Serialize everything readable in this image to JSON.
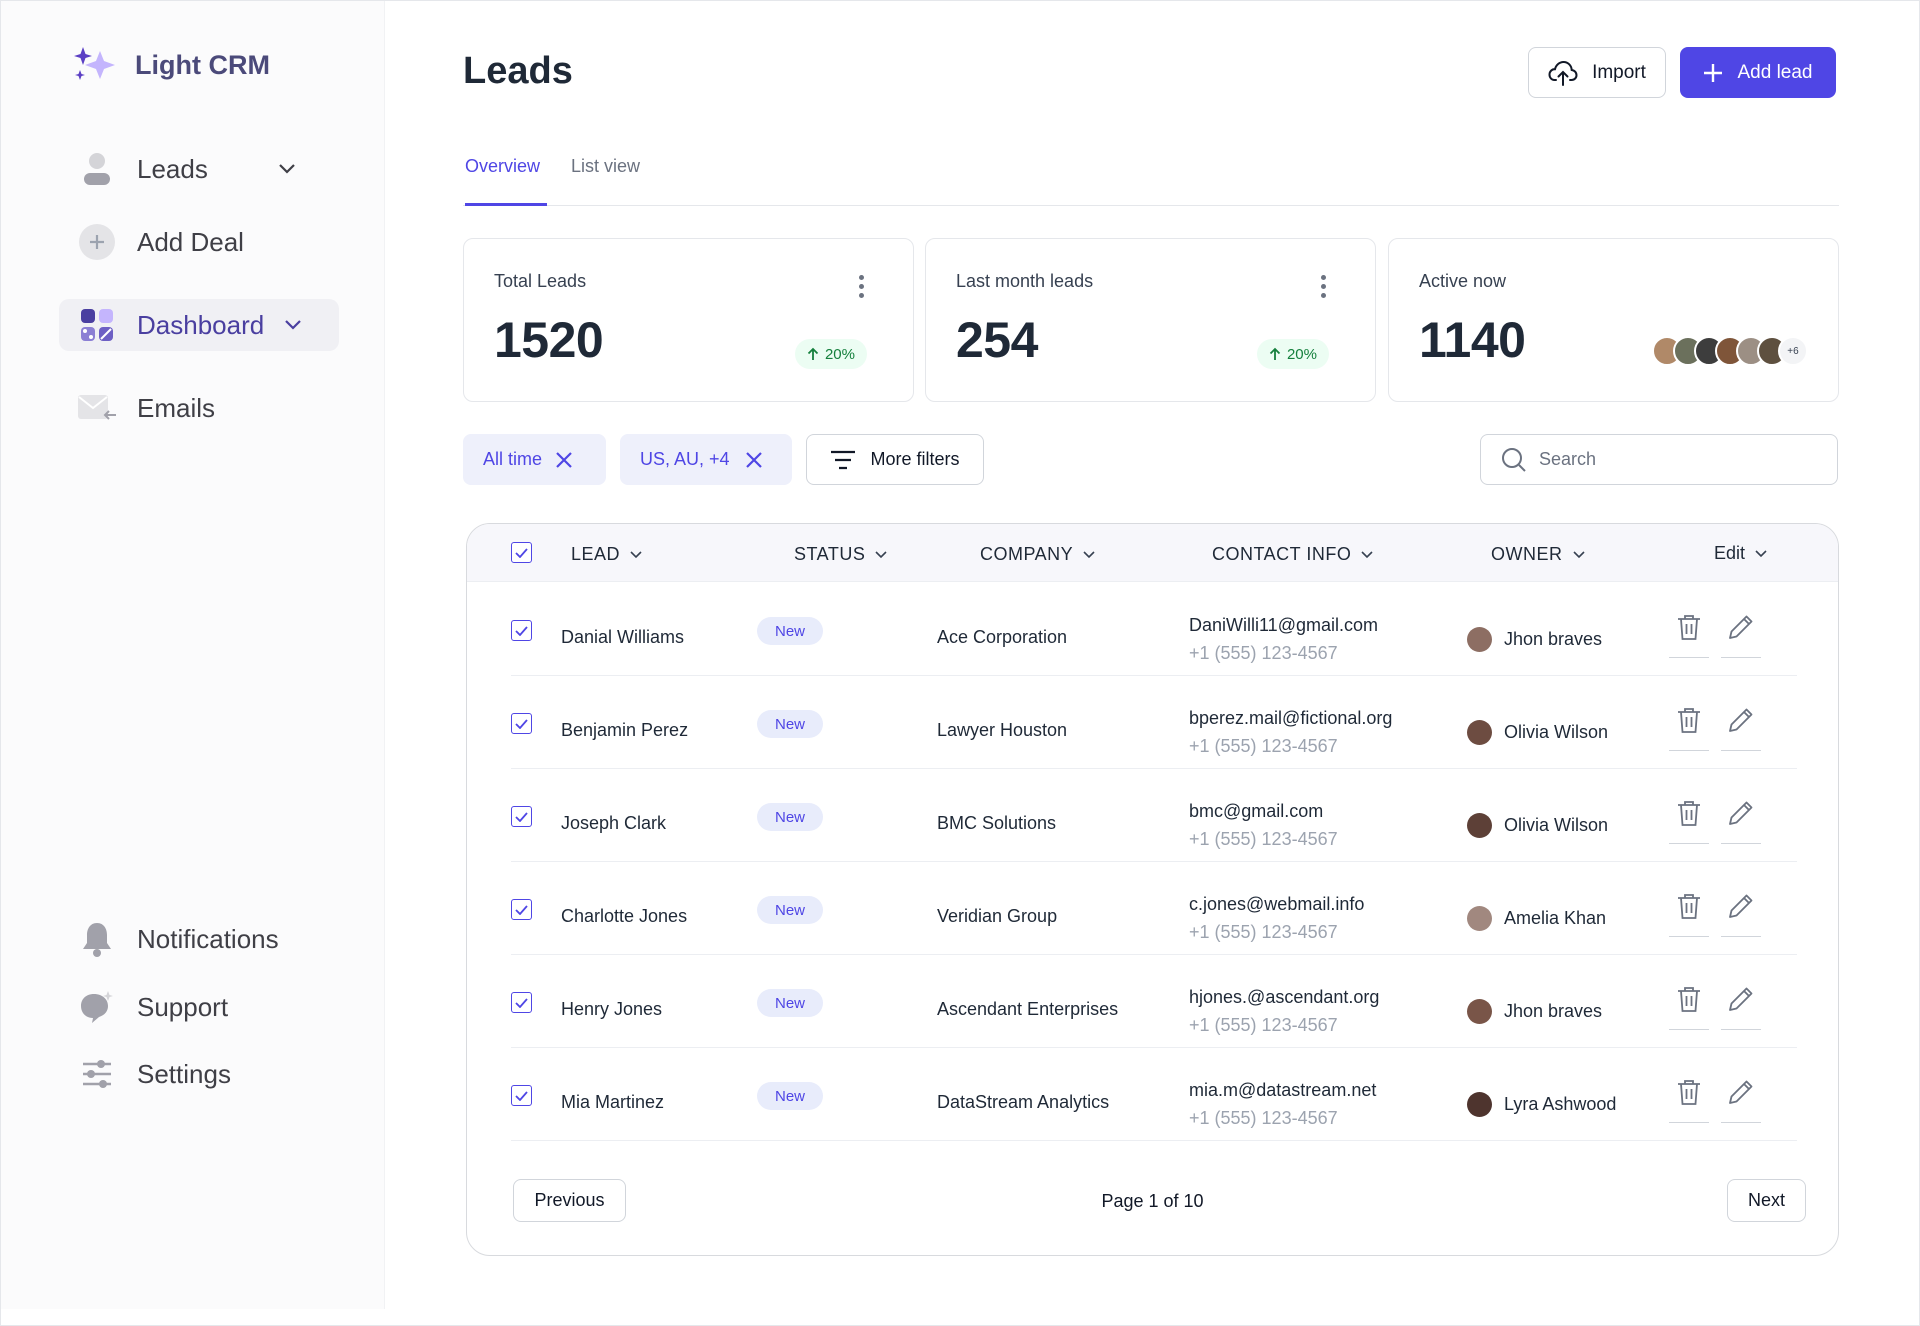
{
  "app": {
    "name": "Light CRM"
  },
  "sidebar": {
    "items": [
      {
        "label": "Leads",
        "icon": "user-icon",
        "has_chevron": true
      },
      {
        "label": "Add Deal",
        "icon": "plus-circle-icon"
      },
      {
        "label": "Dashboard",
        "icon": "grid-icon",
        "has_chevron": true,
        "active": true
      },
      {
        "label": "Emails",
        "icon": "mail-icon"
      }
    ],
    "bottom": [
      {
        "label": "Notifications",
        "icon": "bell-icon"
      },
      {
        "label": "Support",
        "icon": "chat-icon"
      },
      {
        "label": "Settings",
        "icon": "sliders-icon"
      }
    ]
  },
  "header": {
    "title": "Leads",
    "import_label": "Import",
    "add_label": "Add lead"
  },
  "tabs": [
    {
      "label": "Overview",
      "active": true
    },
    {
      "label": "List view",
      "active": false
    }
  ],
  "stats": [
    {
      "label": "Total Leads",
      "value": "1520",
      "trend": "20%"
    },
    {
      "label": "Last month leads",
      "value": "254",
      "trend": "20%"
    },
    {
      "label": "Active now",
      "value": "1140",
      "avatars_more": "+6"
    }
  ],
  "filters": {
    "chips": [
      "All time",
      "US, AU, +4"
    ],
    "more_label": "More filters",
    "search_placeholder": "Search"
  },
  "table": {
    "columns": [
      "LEAD",
      "STATUS",
      "COMPANY",
      "CONTACT INFO",
      "OWNER",
      "Edit"
    ],
    "rows": [
      {
        "lead": "Danial Williams",
        "status": "New",
        "company": "Ace Corporation",
        "email": "DaniWilli11@gmail.com",
        "phone": "+1 (555)  123-4567",
        "owner": "Jhon braves"
      },
      {
        "lead": "Benjamin Perez",
        "status": "New",
        "company": "Lawyer Houston",
        "email": "bperez.mail@fictional.org",
        "phone": "+1 (555)  123-4567",
        "owner": "Olivia Wilson"
      },
      {
        "lead": "Joseph Clark",
        "status": "New",
        "company": "BMC Solutions",
        "email": "bmc@gmail.com",
        "phone": "+1 (555)  123-4567",
        "owner": "Olivia Wilson"
      },
      {
        "lead": "Charlotte Jones",
        "status": "New",
        "company": "Veridian Group",
        "email": "c.jones@webmail.info",
        "phone": "+1 (555)  123-4567",
        "owner": "Amelia Khan"
      },
      {
        "lead": "Henry Jones",
        "status": "New",
        "company": "Ascendant Enterprises",
        "email": "hjones.@ascendant.org",
        "phone": "+1 (555)  123-4567",
        "owner": "Jhon braves"
      },
      {
        "lead": "Mia Martinez",
        "status": "New",
        "company": "DataStream Analytics",
        "email": "mia.m@datastream.net",
        "phone": "+1 (555)  123-4567",
        "owner": "Lyra Ashwood"
      }
    ],
    "pagination": {
      "previous": "Previous",
      "page_info": "Page 1 of 10",
      "next": "Next"
    }
  },
  "colors": {
    "accent": "#4f46e5",
    "trend_bg": "#ecfdf3",
    "trend_text": "#15803d"
  }
}
